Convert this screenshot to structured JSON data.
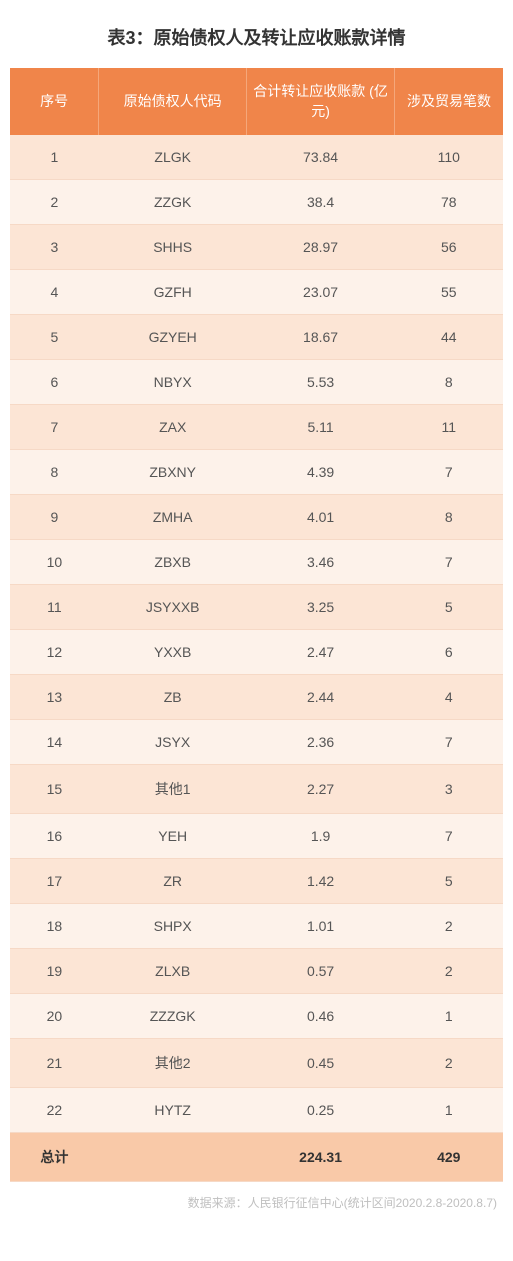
{
  "title": "表3：原始债权人及转让应收账款详情",
  "columns": [
    "序号",
    "原始债权人代码",
    "合计转让应收账款\n(亿元)",
    "涉及贸易笔数"
  ],
  "rows": [
    [
      "1",
      "ZLGK",
      "73.84",
      "110"
    ],
    [
      "2",
      "ZZGK",
      "38.4",
      "78"
    ],
    [
      "3",
      "SHHS",
      "28.97",
      "56"
    ],
    [
      "4",
      "GZFH",
      "23.07",
      "55"
    ],
    [
      "5",
      "GZYEH",
      "18.67",
      "44"
    ],
    [
      "6",
      "NBYX",
      "5.53",
      "8"
    ],
    [
      "7",
      "ZAX",
      "5.11",
      "11"
    ],
    [
      "8",
      "ZBXNY",
      "4.39",
      "7"
    ],
    [
      "9",
      "ZMHA",
      "4.01",
      "8"
    ],
    [
      "10",
      "ZBXB",
      "3.46",
      "7"
    ],
    [
      "11",
      "JSYXXB",
      "3.25",
      "5"
    ],
    [
      "12",
      "YXXB",
      "2.47",
      "6"
    ],
    [
      "13",
      "ZB",
      "2.44",
      "4"
    ],
    [
      "14",
      "JSYX",
      "2.36",
      "7"
    ],
    [
      "15",
      "其他1",
      "2.27",
      "3"
    ],
    [
      "16",
      "YEH",
      "1.9",
      "7"
    ],
    [
      "17",
      "ZR",
      "1.42",
      "5"
    ],
    [
      "18",
      "SHPX",
      "1.01",
      "2"
    ],
    [
      "19",
      "ZLXB",
      "0.57",
      "2"
    ],
    [
      "20",
      "ZZZGK",
      "0.46",
      "1"
    ],
    [
      "21",
      "其他2",
      "0.45",
      "2"
    ],
    [
      "22",
      "HYTZ",
      "0.25",
      "1"
    ]
  ],
  "total": [
    "总计",
    "",
    "224.31",
    "429"
  ],
  "source": "数据来源：人民银行征信中心(统计区间2020.2.8-2020.8.7)",
  "style": {
    "header_bg": "#f0854a",
    "header_fg": "#ffffff",
    "row_odd_bg": "#fce5d5",
    "row_even_bg": "#fdf2ea",
    "total_bg": "#f9c9a8",
    "border_color": "#f6d9c6",
    "text_color": "#555555",
    "title_color": "#333333",
    "source_color": "#bfbfbf",
    "title_fontsize": 18,
    "cell_fontsize": 14,
    "source_fontsize": 12,
    "col_widths_pct": [
      18,
      30,
      30,
      22
    ]
  }
}
